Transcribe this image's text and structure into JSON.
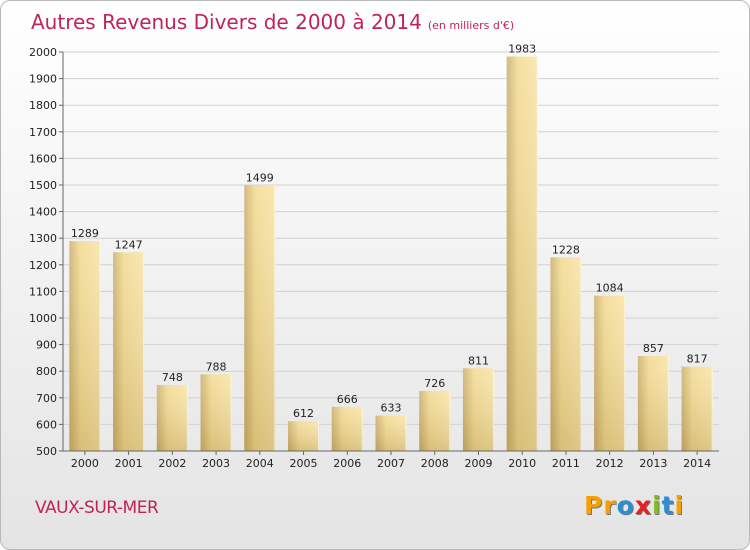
{
  "header": {
    "title": "Autres Revenus Divers de 2000 à 2014",
    "subtitle": "(en milliers d'€)"
  },
  "location": "VAUX-SUR-MER",
  "logo": {
    "letters": [
      "P",
      "r",
      "o",
      "x",
      "i",
      "t",
      "i"
    ],
    "colors": [
      "#f5a000",
      "#f5a000",
      "#2c8fd6",
      "#e52222",
      "#7fbf1f",
      "#2c8fd6",
      "#f5a000"
    ]
  },
  "colors": {
    "title": "#c0235b",
    "bar_light": "#f5dc96",
    "bar_dark": "#c2a866",
    "grid": "#d2d2d2",
    "axis": "#666666"
  },
  "chart_data": {
    "type": "bar",
    "categories": [
      "2000",
      "2001",
      "2002",
      "2003",
      "2004",
      "2005",
      "2006",
      "2007",
      "2008",
      "2009",
      "2010",
      "2011",
      "2012",
      "2013",
      "2014"
    ],
    "values": [
      1289,
      1247,
      748,
      788,
      1499,
      612,
      666,
      633,
      726,
      811,
      1983,
      1228,
      1084,
      857,
      817
    ],
    "ylim": [
      500,
      2000
    ],
    "yticks": [
      500,
      600,
      700,
      800,
      900,
      1000,
      1100,
      1200,
      1300,
      1400,
      1500,
      1600,
      1700,
      1800,
      1900,
      2000
    ],
    "grid": true,
    "legend": "none"
  }
}
